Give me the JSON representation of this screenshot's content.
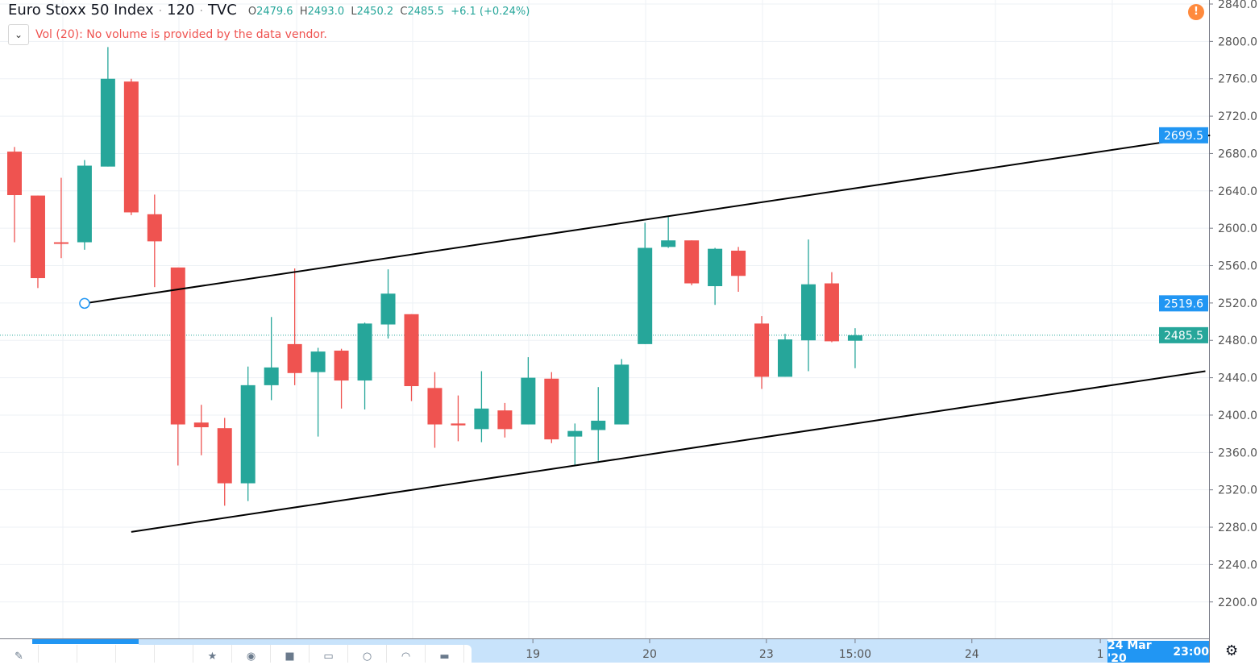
{
  "legend": {
    "symbol": "Euro Stoxx 50 Index",
    "interval": "120",
    "source": "TVC",
    "sep": "·",
    "o_label": "O",
    "o": "2479.6",
    "h_label": "H",
    "h": "2493.0",
    "l_label": "L",
    "l": "2450.2",
    "c_label": "C",
    "c": "2485.5",
    "change": "+6.1 (+0.24%)"
  },
  "volume": {
    "text": "Vol (20): No volume is provided by the data vendor.",
    "collapse_icon": "chevron-down-icon"
  },
  "warning_icon": "!",
  "colors": {
    "up": "#26a69a",
    "down": "#ef5350",
    "accent": "#2196f3",
    "warning": "#ff8a3d"
  },
  "chart_data": {
    "type": "candlestick",
    "ylim": [
      2180,
      2840
    ],
    "y_ticks": [
      "2840.0",
      "2800.0",
      "2760.0",
      "2720.0",
      "2680.0",
      "2640.0",
      "2600.0",
      "2560.0",
      "2520.0",
      "2480.0",
      "2440.0",
      "2400.0",
      "2360.0",
      "2320.0",
      "2280.0",
      "2240.0",
      "2200.0"
    ],
    "x_ticks": [
      {
        "label": "19",
        "index": 22.2
      },
      {
        "label": "20",
        "index": 27.2
      },
      {
        "label": "23",
        "index": 32.2
      },
      {
        "label": "15:00",
        "index": 36.0
      },
      {
        "label": "24",
        "index": 41.0
      },
      {
        "label": "1",
        "index": 46.5
      }
    ],
    "candles": [
      [
        2682,
        2635.5,
        2687,
        2585
      ],
      [
        2635,
        2546.6,
        2635,
        2536
      ],
      [
        2585,
        2584,
        2654,
        2568
      ],
      [
        2585,
        2667,
        2673,
        2577
      ],
      [
        2666,
        2760,
        2794,
        2666
      ],
      [
        2757,
        2617,
        2760,
        2614
      ],
      [
        2615,
        2586,
        2636,
        2537
      ],
      [
        2558,
        2390,
        2558,
        2346
      ],
      [
        2392,
        2387,
        2411,
        2357
      ],
      [
        2386,
        2327,
        2397,
        2303
      ],
      [
        2327,
        2432,
        2452,
        2308
      ],
      [
        2432,
        2451,
        2505,
        2416
      ],
      [
        2476,
        2445,
        2557,
        2432
      ],
      [
        2446,
        2468,
        2472,
        2377
      ],
      [
        2469,
        2437,
        2471,
        2407
      ],
      [
        2437,
        2498,
        2499,
        2406
      ],
      [
        2497,
        2530,
        2556,
        2482
      ],
      [
        2508,
        2431,
        2508,
        2415
      ],
      [
        2429,
        2390,
        2446,
        2365
      ],
      [
        2391,
        2389,
        2421,
        2372
      ],
      [
        2385,
        2407,
        2447,
        2371
      ],
      [
        2405,
        2385,
        2413,
        2376
      ],
      [
        2390,
        2440,
        2462,
        2390
      ],
      [
        2439,
        2374,
        2446,
        2370
      ],
      [
        2377,
        2383,
        2391,
        2346
      ],
      [
        2384,
        2394,
        2430,
        2351
      ],
      [
        2390,
        2454,
        2460,
        2390
      ],
      [
        2476,
        2579,
        2606,
        2476
      ],
      [
        2580,
        2587,
        2613,
        2579
      ],
      [
        2587,
        2541,
        2587,
        2539
      ],
      [
        2538,
        2578,
        2579,
        2518
      ],
      [
        2576,
        2549,
        2580,
        2532
      ],
      [
        2498,
        2441,
        2506,
        2428
      ],
      [
        2441,
        2481,
        2487,
        2441
      ],
      [
        2480,
        2540,
        2588,
        2447
      ],
      [
        2541,
        2479,
        2553,
        2478
      ],
      [
        2479.6,
        2485.5,
        2493.0,
        2450.2
      ]
    ],
    "candle_format": [
      "open",
      "close",
      "high",
      "low"
    ],
    "trendlines": [
      {
        "from": {
          "index": 3,
          "price": 2519.6
        },
        "to": {
          "index": 51.2,
          "price": 2699.5
        }
      },
      {
        "from": {
          "index": 5,
          "price": 2275
        },
        "to": {
          "index": 51,
          "price": 2447
        }
      }
    ],
    "price_badges": [
      {
        "value": "2699.5",
        "color": "#2196f3"
      },
      {
        "value": "2519.6",
        "color": "#2196f3"
      },
      {
        "value": "2485.5",
        "color": "#26a69a"
      }
    ],
    "last_price": 2485.5
  },
  "time_axis": {
    "crosshair_date": "24 Mar '20",
    "crosshair_time": "23:00"
  },
  "toolbar": {
    "icons": [
      "pencil-icon",
      "",
      "",
      "",
      "",
      "star-icon",
      "eye-icon",
      "lock-icon",
      "layers-icon",
      "pin-icon",
      "hide-icon",
      "trash-icon"
    ]
  }
}
